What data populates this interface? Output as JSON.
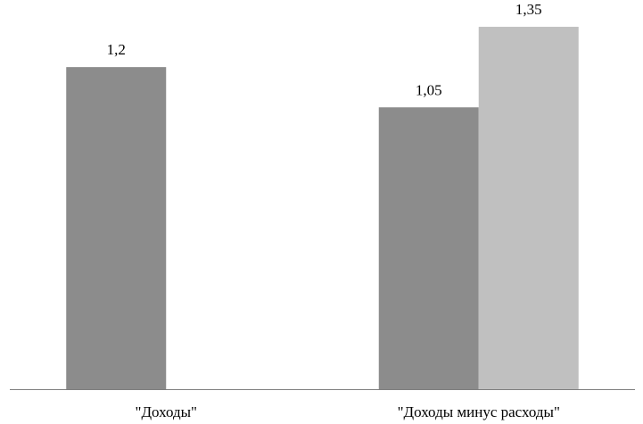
{
  "chart_data": {
    "type": "bar",
    "categories": [
      "\"Доходы\"",
      "\"Доходы минус расходы\""
    ],
    "series": [
      {
        "values": [
          1.2,
          1.05
        ],
        "color": "#8c8c8c"
      },
      {
        "values": [
          null,
          1.35
        ],
        "color": "#c0c0c0"
      }
    ],
    "data_labels": [
      [
        "1,2",
        "1,05"
      ],
      [
        null,
        "1,35"
      ]
    ],
    "ylim": [
      0,
      1.4
    ],
    "grid": false,
    "legend": "none",
    "axis_color": "#7f7f7f"
  }
}
